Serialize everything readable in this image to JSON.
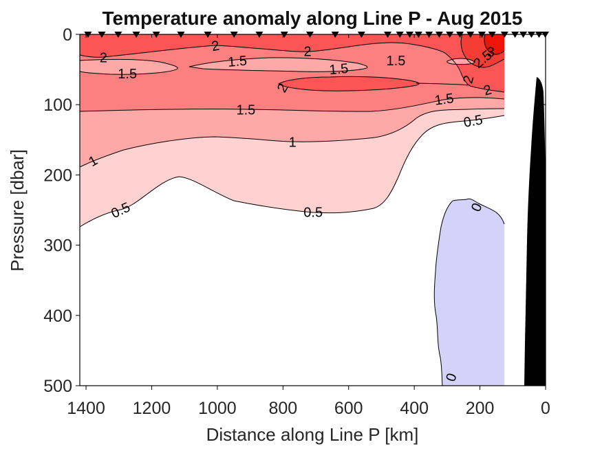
{
  "chart_data": {
    "type": "heatmap",
    "subtype": "filled-contour-section",
    "title": "Temperature anomaly along Line P - Aug 2015",
    "xlabel": "Distance along Line P [km]",
    "ylabel": "Pressure [dbar]",
    "xlim": [
      1419,
      0
    ],
    "ylim": [
      0,
      500
    ],
    "x_axis_reversed": true,
    "y_axis_reversed": true,
    "x_ticks": [
      1400,
      1200,
      1000,
      800,
      600,
      400,
      200,
      0
    ],
    "y_ticks": [
      0,
      100,
      200,
      300,
      400,
      500
    ],
    "contour_levels": [
      0,
      0.5,
      1,
      1.5,
      2,
      2.5,
      3
    ],
    "colors": {
      "c00": "#ffffff",
      "c05": "#ffd2d2",
      "c10": "#ffa8a8",
      "c15": "#fd8080",
      "c20": "#fc5555",
      "c25": "#f23c34",
      "c30": "#ee1408",
      "neg": "#d4d2f8",
      "land": "#000000",
      "contour_line": "#000000",
      "marker": "#000000"
    },
    "contour_labels": [
      {
        "text": "2",
        "km": 1347,
        "dbar": 33,
        "rot": 0
      },
      {
        "text": "2",
        "km": 1006,
        "dbar": 16,
        "rot": -10
      },
      {
        "text": "2",
        "km": 725,
        "dbar": 24,
        "rot": 0
      },
      {
        "text": "2",
        "km": 802,
        "dbar": 76,
        "rot": -60
      },
      {
        "text": "2",
        "km": 236,
        "dbar": 64,
        "rot": -75
      },
      {
        "text": "2",
        "km": 177,
        "dbar": 79,
        "rot": -15
      },
      {
        "text": "2.5",
        "km": 192,
        "dbar": 35,
        "rot": -40
      },
      {
        "text": "3",
        "km": 167,
        "dbar": 25,
        "rot": 0
      },
      {
        "text": "1.5",
        "km": 1274,
        "dbar": 56,
        "rot": 0
      },
      {
        "text": "1.5",
        "km": 939,
        "dbar": 38,
        "rot": -5
      },
      {
        "text": "1.5",
        "km": 630,
        "dbar": 49,
        "rot": -5
      },
      {
        "text": "1.5",
        "km": 456,
        "dbar": 37,
        "rot": 0
      },
      {
        "text": "1.5",
        "km": 913,
        "dbar": 107,
        "rot": 0
      },
      {
        "text": "1.5",
        "km": 309,
        "dbar": 92,
        "rot": -8
      },
      {
        "text": "1",
        "km": 771,
        "dbar": 153,
        "rot": 0
      },
      {
        "text": "1",
        "km": 1379,
        "dbar": 180,
        "rot": -30
      },
      {
        "text": "0.5",
        "km": 1295,
        "dbar": 250,
        "rot": -25
      },
      {
        "text": "0.5",
        "km": 708,
        "dbar": 253,
        "rot": 0
      },
      {
        "text": "0.5",
        "km": 221,
        "dbar": 123,
        "rot": -10
      },
      {
        "text": "0",
        "km": 211,
        "dbar": 246,
        "rot": -65
      },
      {
        "text": "0",
        "km": 288,
        "dbar": 488,
        "rot": -70
      }
    ],
    "stations_km": [
      1394,
      1352,
      1302,
      1247,
      1186,
      1111,
      1029,
      949,
      872,
      796,
      718,
      641,
      561,
      481,
      444,
      414,
      387,
      355,
      324,
      292,
      261,
      229,
      194,
      163,
      125,
      93,
      68,
      43,
      20,
      1
    ]
  }
}
